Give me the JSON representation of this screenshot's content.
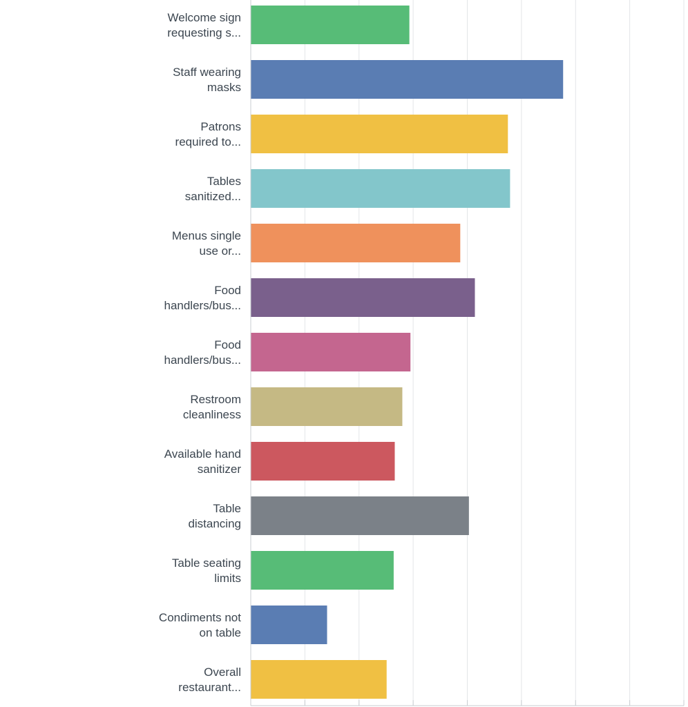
{
  "chart_data": {
    "type": "bar",
    "orientation": "horizontal",
    "title": "",
    "xlabel": "",
    "ylabel": "",
    "categories": [
      [
        "Welcome sign",
        "requesting s..."
      ],
      [
        "Staff wearing",
        "masks"
      ],
      [
        "Patrons",
        "required to..."
      ],
      [
        "Tables",
        "sanitized..."
      ],
      [
        "Menus single",
        "use or..."
      ],
      [
        "Food",
        "handlers/bus..."
      ],
      [
        "Food",
        "handlers/bus..."
      ],
      [
        "Restroom",
        "cleanliness"
      ],
      [
        "Available hand",
        "sanitizer"
      ],
      [
        "Table",
        "distancing"
      ],
      [
        "Table seating",
        "limits"
      ],
      [
        "Condiments not",
        "on table"
      ],
      [
        "Overall",
        "restaurant..."
      ]
    ],
    "values": [
      29.3,
      57.7,
      47.5,
      47.9,
      38.7,
      41.4,
      29.5,
      28.0,
      26.6,
      40.3,
      26.4,
      14.1,
      25.1
    ],
    "xlim": [
      0,
      80
    ],
    "grid": true,
    "legend": "none",
    "colors": [
      "#57bc77",
      "#5a7db3",
      "#f0c043",
      "#83c6cb",
      "#ef915c",
      "#7a608c",
      "#c4668f",
      "#c5b984",
      "#cc585f",
      "#7b8188",
      "#57bc77",
      "#5a7db3",
      "#f0c043"
    ],
    "axis_color": "#c8ccd0",
    "grid_color": "#e3e5e8"
  }
}
